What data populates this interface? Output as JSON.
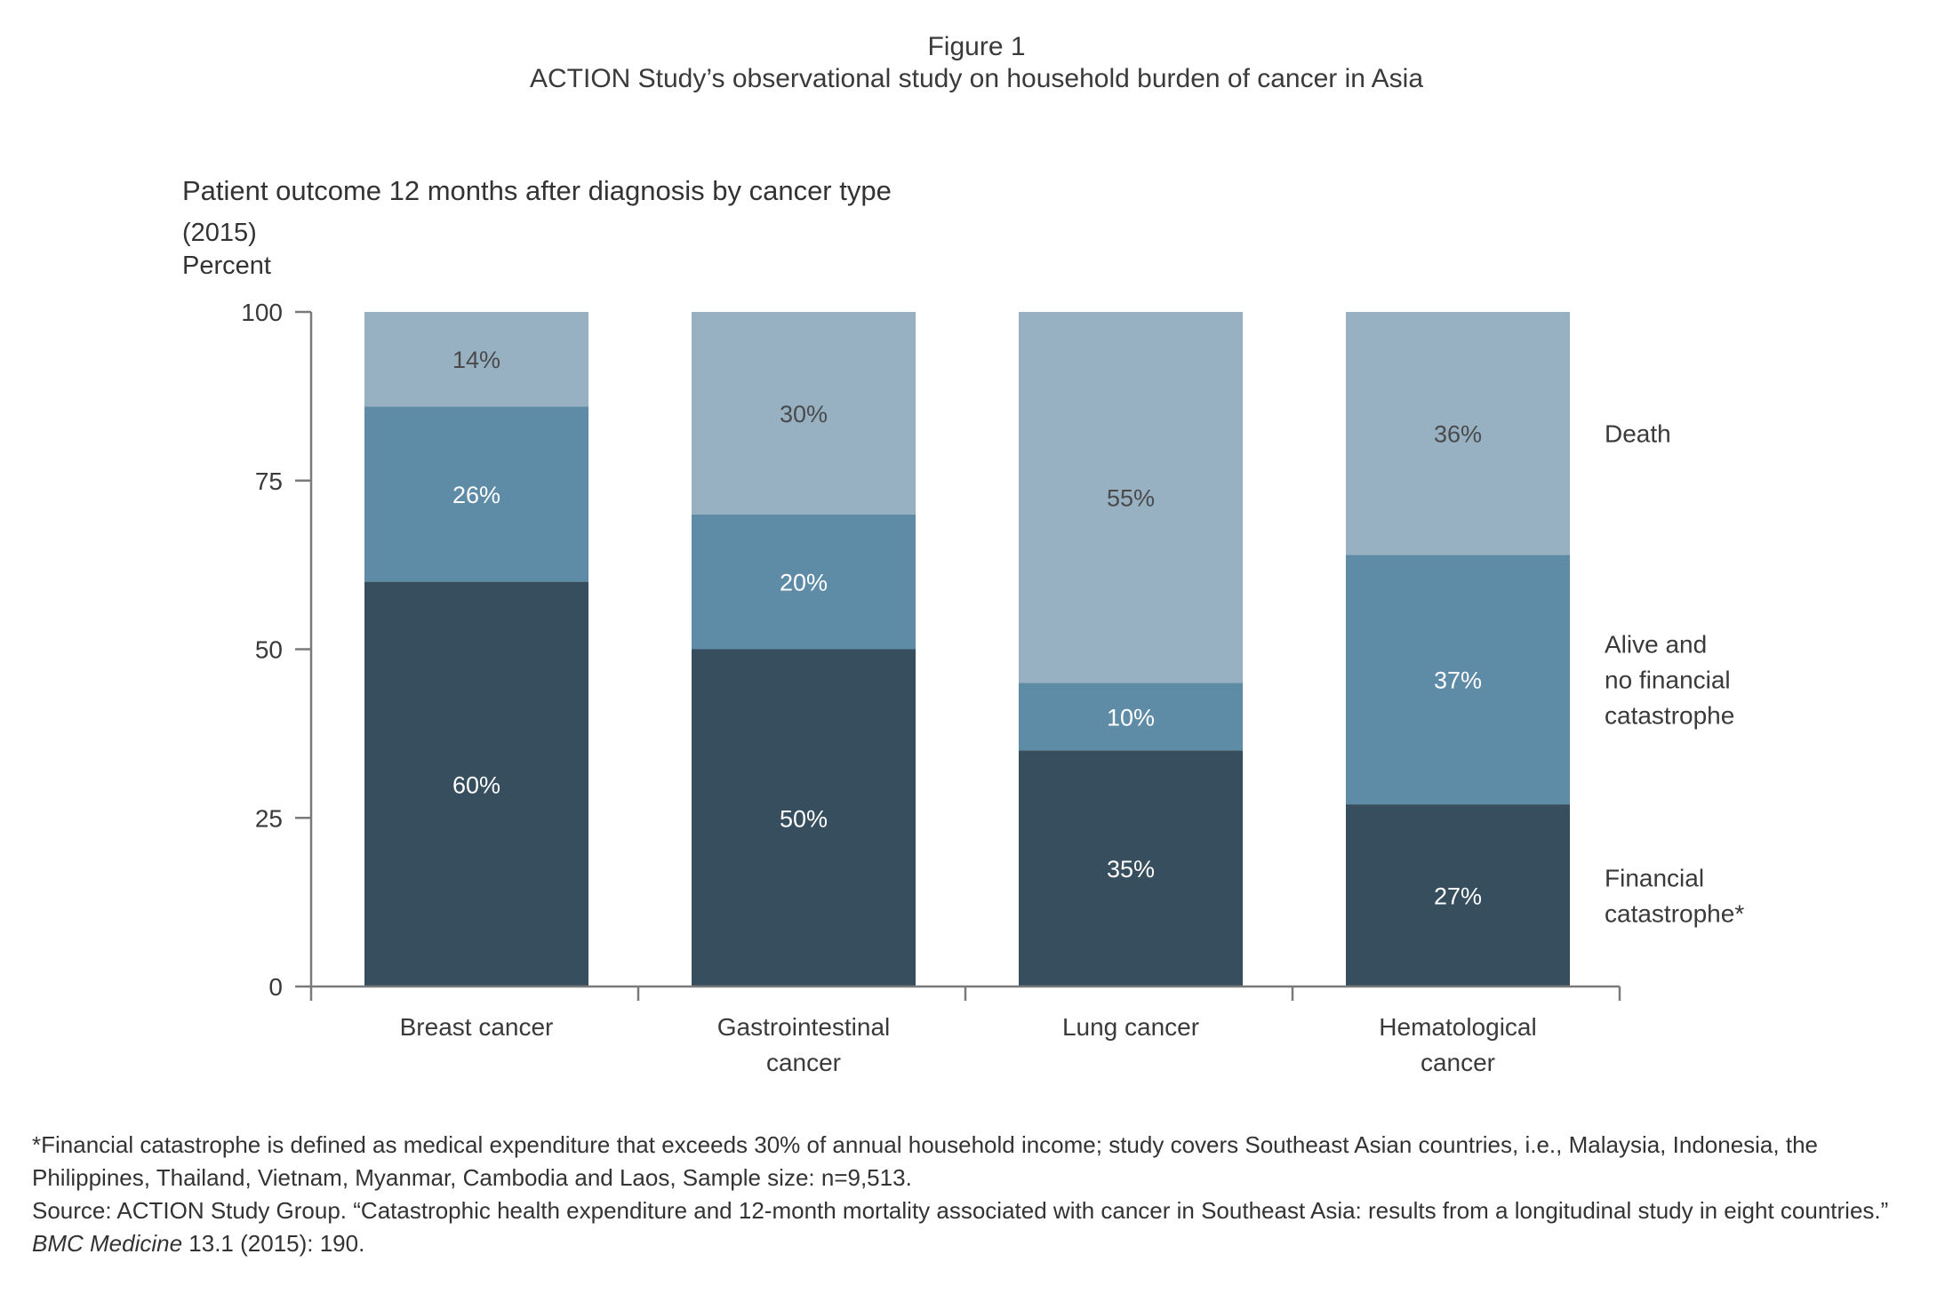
{
  "figure": {
    "number": "Figure 1",
    "caption": "ACTION Study’s observational study on household burden of cancer in Asia"
  },
  "chart_data": {
    "type": "bar",
    "stacked": true,
    "title": "Patient outcome 12 months after diagnosis by cancer type",
    "subtitle": "(2015)",
    "ylabel": "Percent",
    "xlabel": "",
    "ylim": [
      0,
      100
    ],
    "yticks": [
      "0",
      "25",
      "50",
      "75",
      "100"
    ],
    "ytick_values": [
      0,
      25,
      50,
      75,
      100
    ],
    "grid": false,
    "legend_placement": "right",
    "categories": [
      [
        "Breast cancer"
      ],
      [
        "Gastrointestinal",
        "cancer"
      ],
      [
        "Lung cancer"
      ],
      [
        "Hematological",
        "cancer"
      ]
    ],
    "series": [
      {
        "name": [
          "Financial",
          "catastrophe*"
        ],
        "color": "#364e5d",
        "values": [
          60,
          50,
          35,
          27
        ],
        "labels": [
          "60%",
          "50%",
          "35%",
          "27%"
        ],
        "label_color": "#ffffff"
      },
      {
        "name": [
          "Alive and",
          "no financial",
          "catastrophe"
        ],
        "color": "#5e8ba6",
        "values": [
          26,
          20,
          10,
          37
        ],
        "labels": [
          "26%",
          "20%",
          "10%",
          "37%"
        ],
        "label_color": "#ffffff"
      },
      {
        "name": [
          "Death"
        ],
        "color": "#97b1c3",
        "values": [
          14,
          30,
          55,
          36
        ],
        "labels": [
          "14%",
          "30%",
          "55%",
          "36%"
        ],
        "label_color": "#4a4a4a"
      }
    ]
  },
  "notes": {
    "definition": "*Financial catastrophe is defined as medical expenditure that exceeds 30% of annual household income; study covers Southeast Asian countries, i.e., Malaysia, Indonesia, the Philippines, Thailand, Vietnam, Myanmar, Cambodia and Laos, Sample size: n=9,513.",
    "source_prefix": "Source: ACTION Study Group. “Catastrophic health expenditure and 12-month mortality associated with cancer in Southeast Asia: results from a longitudinal study in eight countries.” ",
    "source_journal": "BMC Medicine",
    "source_suffix": " 13.1 (2015): 190."
  }
}
